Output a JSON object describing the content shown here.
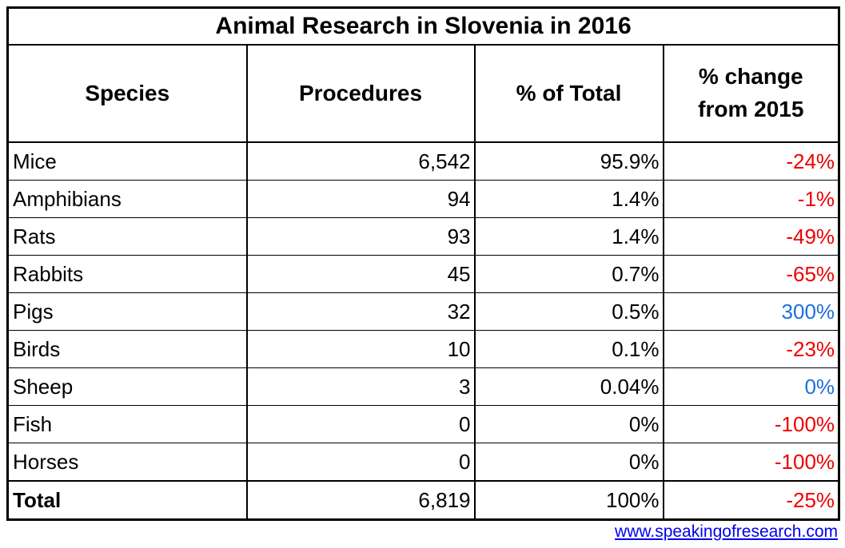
{
  "title": "Animal Research in Slovenia in 2016",
  "columns": [
    "Species",
    "Procedures",
    "% of Total",
    "% change from 2015"
  ],
  "rows": [
    {
      "species": "Mice",
      "procedures": "6,542",
      "pct_total": "95.9%",
      "pct_change": "-24%",
      "change_color": "#ee0000"
    },
    {
      "species": "Amphibians",
      "procedures": "94",
      "pct_total": "1.4%",
      "pct_change": "-1%",
      "change_color": "#ee0000"
    },
    {
      "species": "Rats",
      "procedures": "93",
      "pct_total": "1.4%",
      "pct_change": "-49%",
      "change_color": "#ee0000"
    },
    {
      "species": "Rabbits",
      "procedures": "45",
      "pct_total": "0.7%",
      "pct_change": "-65%",
      "change_color": "#ee0000"
    },
    {
      "species": "Pigs",
      "procedures": "32",
      "pct_total": "0.5%",
      "pct_change": "300%",
      "change_color": "#1b6ede"
    },
    {
      "species": "Birds",
      "procedures": "10",
      "pct_total": "0.1%",
      "pct_change": "-23%",
      "change_color": "#ee0000"
    },
    {
      "species": "Sheep",
      "procedures": "3",
      "pct_total": "0.04%",
      "pct_change": "0%",
      "change_color": "#1b6ede"
    },
    {
      "species": "Fish",
      "procedures": "0",
      "pct_total": "0%",
      "pct_change": "-100%",
      "change_color": "#ee0000"
    },
    {
      "species": "Horses",
      "procedures": "0",
      "pct_total": "0%",
      "pct_change": "-100%",
      "change_color": "#ee0000"
    }
  ],
  "total": {
    "species": "Total",
    "procedures": "6,819",
    "pct_total": "100%",
    "pct_change": "-25%",
    "change_color": "#ee0000"
  },
  "footer": {
    "link_text": "www.speakingofresearch.com"
  },
  "colors": {
    "decrease": "#ee0000",
    "increase": "#1b6ede",
    "link": "#0000ee",
    "border": "#000000"
  },
  "chart_data": {
    "type": "table",
    "title": "Animal Research in Slovenia in 2016",
    "columns": [
      "Species",
      "Procedures",
      "% of Total",
      "% change from 2015"
    ],
    "categories": [
      "Mice",
      "Amphibians",
      "Rats",
      "Rabbits",
      "Pigs",
      "Birds",
      "Sheep",
      "Fish",
      "Horses"
    ],
    "series": [
      {
        "name": "Procedures",
        "values": [
          6542,
          94,
          93,
          45,
          32,
          10,
          3,
          0,
          0
        ]
      },
      {
        "name": "% of Total",
        "values": [
          95.9,
          1.4,
          1.4,
          0.7,
          0.5,
          0.1,
          0.04,
          0,
          0
        ]
      },
      {
        "name": "% change from 2015",
        "values": [
          -24,
          -1,
          -49,
          -65,
          300,
          -23,
          0,
          -100,
          -100
        ]
      }
    ],
    "totals": {
      "Procedures": 6819,
      "% of Total": 100,
      "% change from 2015": -25
    },
    "layout_hints": {
      "negative_change_color": "#ee0000",
      "positive_or_zero_change_color": "#1b6ede",
      "grid": true
    }
  }
}
